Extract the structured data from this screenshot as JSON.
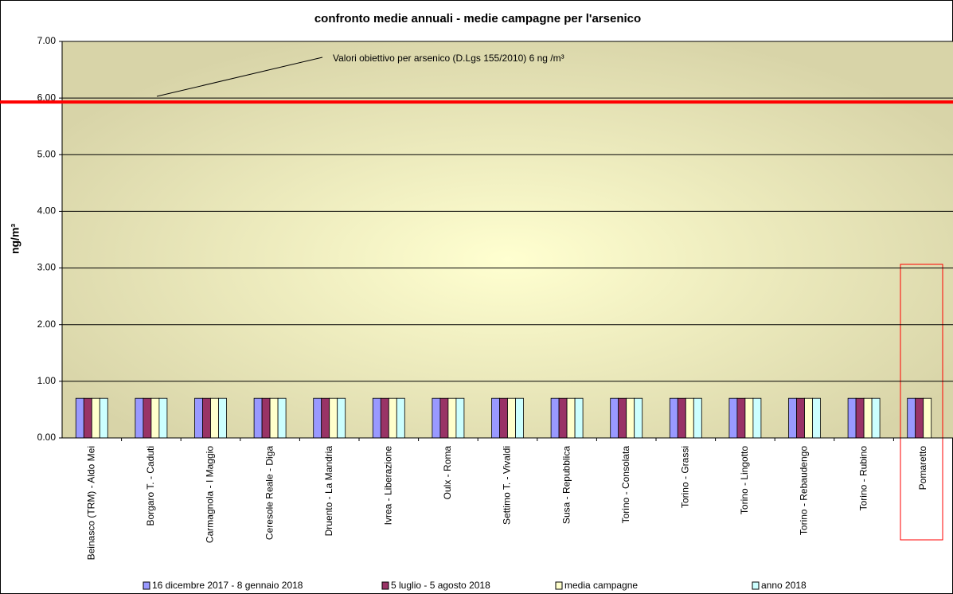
{
  "chart_data": {
    "type": "bar",
    "title": "confronto medie annuali - medie campagne per l'arsenico",
    "y_label": "ng/m³",
    "annotation": "Valori obiettivo per arsenico (D.Lgs 155/2010)  6 ng /m³",
    "target_line": {
      "value": 5.93,
      "color": "#ff0000"
    },
    "categories": [
      "Beinasco (TRM) - Aldo Mei",
      "Borgaro T. - Caduti",
      "Carmagnola - I Maggio",
      "Ceresole Reale - Diga",
      "Druento - La Mandria",
      "Ivrea - Liberazione",
      "Oulx - Roma",
      "Settimo T. - Vivaldi",
      "Susa - Repubblica",
      "Torino - Consolata",
      "Torino - Grassi",
      "Torino - Lingotto",
      "Torino - Rebaudengo",
      "Torino - Rubino",
      "Pomaretto"
    ],
    "series": [
      {
        "name": "16 dicembre 2017 - 8 gennaio 2018",
        "color": "#9999ff",
        "values": [
          0.7,
          0.7,
          0.7,
          0.7,
          0.7,
          0.7,
          0.7,
          0.7,
          0.7,
          0.7,
          0.7,
          0.7,
          0.7,
          0.7,
          0.7
        ]
      },
      {
        "name": "5 luglio - 5 agosto 2018",
        "color": "#993366",
        "values": [
          0.7,
          0.7,
          0.7,
          0.7,
          0.7,
          0.7,
          0.7,
          0.7,
          0.7,
          0.7,
          0.7,
          0.7,
          0.7,
          0.7,
          0.7
        ]
      },
      {
        "name": "media campagne",
        "color": "#ffffcc",
        "values": [
          0.7,
          0.7,
          0.7,
          0.7,
          0.7,
          0.7,
          0.7,
          0.7,
          0.7,
          0.7,
          0.7,
          0.7,
          0.7,
          0.7,
          0.7
        ]
      },
      {
        "name": "anno 2018",
        "color": "#ccffff",
        "values": [
          0.7,
          0.7,
          0.7,
          0.7,
          0.7,
          0.7,
          0.7,
          0.7,
          0.7,
          0.7,
          0.7,
          0.7,
          0.7,
          0.7,
          null
        ]
      }
    ],
    "ylim": [
      0,
      7
    ],
    "yticks": [
      {
        "value": 0,
        "label": "0.00"
      },
      {
        "value": 1,
        "label": "1.00"
      },
      {
        "value": 2,
        "label": "2.00"
      },
      {
        "value": 3,
        "label": "3.00"
      },
      {
        "value": 4,
        "label": "4.00"
      },
      {
        "value": 5,
        "label": "5.00"
      },
      {
        "value": 6,
        "label": "6.00"
      },
      {
        "value": 7,
        "label": "7.00"
      }
    ],
    "grid": true
  }
}
